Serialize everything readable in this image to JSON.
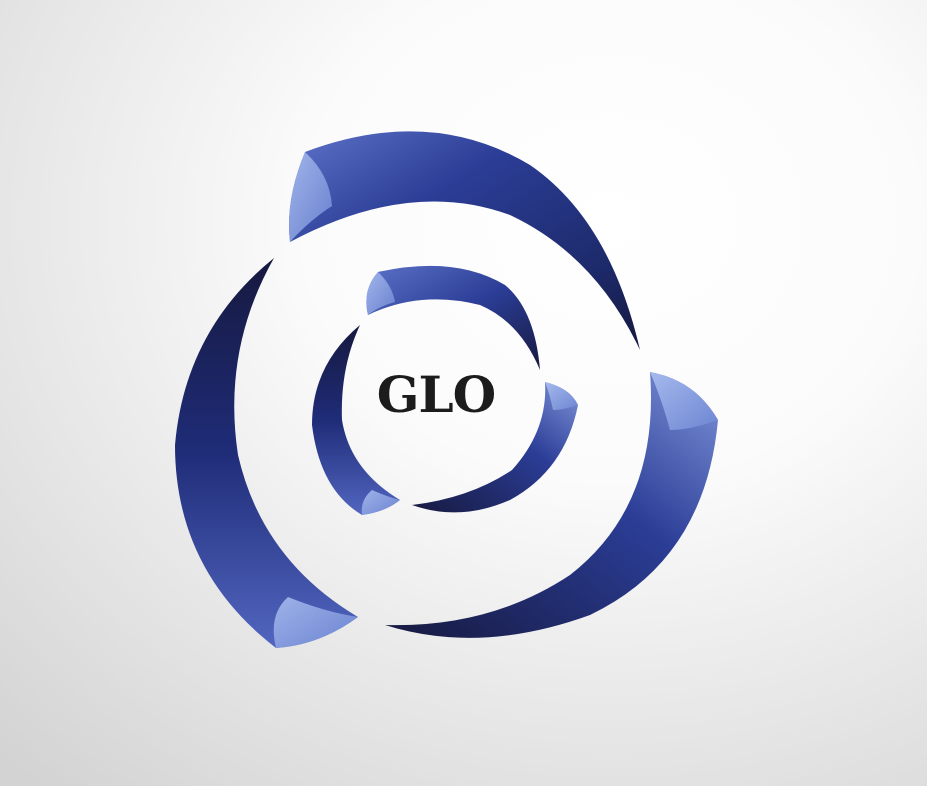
{
  "logo": {
    "wordmark": "GLO",
    "colors": {
      "background_light": "#ffffff",
      "background_dark": "#d3d3d3",
      "arc_deep": "#16193f",
      "arc_navy": "#1d2a6b",
      "arc_royal": "#2b3d96",
      "arc_light": "#8fa8e3",
      "wordmark": "#1c1c1c"
    }
  }
}
